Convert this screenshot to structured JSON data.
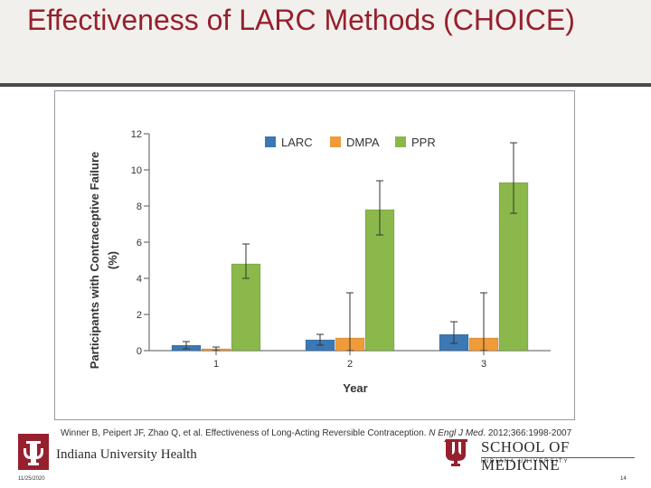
{
  "slide": {
    "title": "Effectiveness of LARC Methods (CHOICE)",
    "citation_text": "Winner B, Peipert JF, Zhao Q, et al.  Effectiveness of Long-Acting Reversible Contraception. ",
    "citation_journal": "N Engl J Med",
    "citation_tail": ". 2012;366:1998-2007",
    "footer_date": "11/25/2020",
    "page_number": "14"
  },
  "logos": {
    "iu_health": "Indiana University Health",
    "school_title": "SCHOOL OF MEDICINE",
    "school_sub": "INDIANA UNIVERSITY"
  },
  "chart_data": {
    "type": "bar",
    "xlabel": "Year",
    "ylabel": "Participants with Contraceptive Failure (%)",
    "ylim": [
      0,
      12
    ],
    "yticks": [
      0,
      2,
      4,
      6,
      8,
      10,
      12
    ],
    "categories": [
      "1",
      "2",
      "3"
    ],
    "legend_position": "top-right",
    "series": [
      {
        "name": "LARC",
        "color": "#3c78b4",
        "values": [
          0.3,
          0.6,
          0.9
        ],
        "err_low": [
          0.1,
          0.3,
          0.4
        ],
        "err_high": [
          0.5,
          0.9,
          1.6
        ]
      },
      {
        "name": "DMPA",
        "color": "#f09b3a",
        "values": [
          0.1,
          0.7,
          0.7
        ],
        "err_low": [
          0.0,
          0.0,
          0.0
        ],
        "err_high": [
          0.2,
          3.2,
          3.2
        ]
      },
      {
        "name": "PPR",
        "color": "#8ab84a",
        "values": [
          4.8,
          7.8,
          9.3
        ],
        "err_low": [
          4.0,
          6.4,
          7.6
        ],
        "err_high": [
          5.9,
          9.4,
          11.5
        ]
      }
    ]
  }
}
